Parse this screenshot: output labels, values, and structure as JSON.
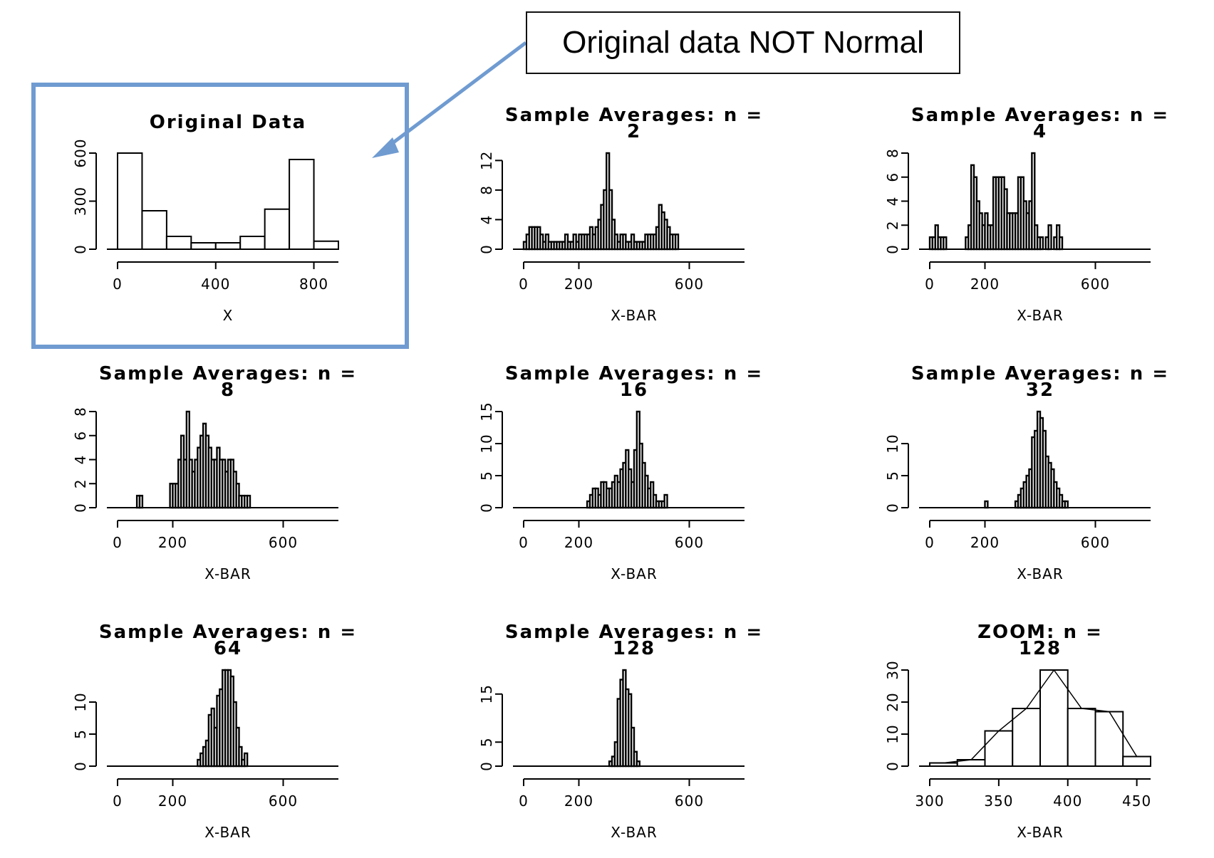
{
  "callout": {
    "text": "Original data NOT Normal",
    "box_color": "#111111",
    "arrow_color": "#6f9bd1"
  },
  "highlight_color": "#6f9bd1",
  "chart_data": [
    {
      "type": "bar",
      "title": "Original Data",
      "title2": "",
      "xlabel": "X",
      "x_ticks": [
        0,
        400,
        800
      ],
      "y_ticks": [
        0,
        300,
        600
      ],
      "xlim": [
        0,
        900
      ],
      "ylim": [
        0,
        600
      ],
      "bin_width": 100,
      "bin_starts": [
        0,
        100,
        200,
        300,
        400,
        500,
        600,
        700,
        800
      ],
      "values": [
        620,
        240,
        80,
        40,
        40,
        80,
        250,
        560,
        50
      ],
      "highlighted": true
    },
    {
      "type": "bar",
      "title": "Sample Averages: n =",
      "title2": "2",
      "xlabel": "X-BAR",
      "x_ticks": [
        0,
        200,
        600
      ],
      "y_ticks": [
        0,
        4,
        8,
        12
      ],
      "xlim": [
        0,
        800
      ],
      "ylim": [
        0,
        13
      ],
      "bin_width": 10,
      "bin_start": 0,
      "values": [
        1,
        2,
        3,
        3,
        3,
        3,
        2,
        1,
        2,
        1,
        1,
        1,
        1,
        1,
        1,
        2,
        1,
        1,
        2,
        1,
        2,
        2,
        2,
        2,
        3,
        2,
        3,
        4,
        6,
        8,
        13,
        8,
        4,
        2,
        1,
        2,
        2,
        1,
        1,
        2,
        1,
        1,
        1,
        1,
        2,
        2,
        2,
        2,
        3,
        6,
        5,
        4,
        3,
        2,
        2,
        2
      ]
    },
    {
      "type": "bar",
      "title": "Sample Averages: n =",
      "title2": "4",
      "xlabel": "X-BAR",
      "x_ticks": [
        0,
        200,
        600
      ],
      "y_ticks": [
        0,
        2,
        4,
        6,
        8
      ],
      "xlim": [
        0,
        800
      ],
      "ylim": [
        0,
        8
      ],
      "bin_width": 10,
      "bin_start": 0,
      "values": [
        1,
        1,
        2,
        1,
        1,
        1,
        0,
        0,
        0,
        0,
        0,
        0,
        0,
        1,
        2,
        7,
        6,
        4,
        3,
        2,
        3,
        2,
        2,
        6,
        6,
        6,
        6,
        5,
        3,
        3,
        3,
        3,
        6,
        6,
        4,
        3,
        4,
        8,
        2,
        1,
        1,
        0,
        1,
        2,
        0,
        1,
        2,
        1
      ]
    },
    {
      "type": "bar",
      "title": "Sample Averages: n =",
      "title2": "8",
      "xlabel": "X-BAR",
      "x_ticks": [
        0,
        200,
        600
      ],
      "y_ticks": [
        0,
        2,
        4,
        6,
        8
      ],
      "xlim": [
        0,
        800
      ],
      "ylim": [
        0,
        8
      ],
      "bin_width": 10,
      "bin_start": 70,
      "values": [
        1,
        1,
        0,
        0,
        0,
        0,
        0,
        0,
        0,
        0,
        0,
        0,
        2,
        2,
        2,
        4,
        6,
        4,
        8,
        4,
        3,
        4,
        5,
        6,
        7,
        6,
        5,
        4,
        4,
        5,
        4,
        4,
        3,
        4,
        4,
        3,
        2,
        1,
        1,
        1,
        1
      ]
    },
    {
      "type": "bar",
      "title": "Sample Averages: n =",
      "title2": "16",
      "xlabel": "X-BAR",
      "x_ticks": [
        0,
        200,
        600
      ],
      "y_ticks": [
        0,
        5,
        10,
        15
      ],
      "xlim": [
        0,
        800
      ],
      "ylim": [
        0,
        15
      ],
      "bin_width": 10,
      "bin_start": 230,
      "values": [
        1,
        2,
        3,
        3,
        2,
        4,
        4,
        3,
        3,
        4,
        5,
        4,
        6,
        7,
        9,
        6,
        4,
        9,
        15,
        10,
        7,
        5,
        3,
        4,
        2,
        1,
        1,
        1,
        2
      ]
    },
    {
      "type": "bar",
      "title": "Sample Averages: n =",
      "title2": "32",
      "xlabel": "X-BAR",
      "x_ticks": [
        0,
        200,
        600
      ],
      "y_ticks": [
        0,
        5,
        10
      ],
      "xlim": [
        0,
        800
      ],
      "ylim": [
        0,
        15
      ],
      "bin_width": 10,
      "bin_start": 200,
      "values": [
        1,
        0,
        0,
        0,
        0,
        0,
        0,
        0,
        0,
        0,
        0,
        1,
        2,
        3,
        4,
        5,
        6,
        11,
        12,
        15,
        14,
        12,
        8,
        7,
        6,
        4,
        3,
        2,
        1,
        1
      ]
    },
    {
      "type": "bar",
      "title": "Sample Averages: n =",
      "title2": "64",
      "xlabel": "X-BAR",
      "x_ticks": [
        0,
        200,
        600
      ],
      "y_ticks": [
        0,
        5,
        10
      ],
      "xlim": [
        0,
        800
      ],
      "ylim": [
        0,
        15
      ],
      "bin_width": 10,
      "bin_start": 290,
      "values": [
        1,
        2,
        3,
        4,
        8,
        9,
        6,
        11,
        12,
        15,
        16,
        16,
        14,
        10,
        6,
        3,
        1,
        2
      ]
    },
    {
      "type": "bar",
      "title": "Sample Averages: n =",
      "title2": "128",
      "xlabel": "X-BAR",
      "x_ticks": [
        0,
        200,
        600
      ],
      "y_ticks": [
        0,
        5,
        15
      ],
      "xlim": [
        0,
        800
      ],
      "ylim": [
        0,
        20
      ],
      "bin_width": 10,
      "bin_start": 310,
      "values": [
        1,
        2,
        5,
        14,
        18,
        20,
        16,
        15,
        8,
        3,
        1
      ]
    },
    {
      "type": "bar",
      "title": "ZOOM: n =",
      "title2": "128",
      "xlabel": "X-BAR",
      "x_ticks": [
        300,
        350,
        400,
        450
      ],
      "y_ticks": [
        0,
        10,
        20,
        30
      ],
      "xlim": [
        300,
        460
      ],
      "ylim": [
        0,
        30
      ],
      "bin_width": 20,
      "bin_start": 300,
      "values": [
        1,
        2,
        11,
        18,
        30,
        18,
        17,
        3
      ],
      "curve_x": [
        310,
        330,
        350,
        370,
        390,
        410,
        430,
        450
      ],
      "curve_y": [
        1,
        2,
        11,
        18,
        30,
        18,
        17,
        3
      ]
    }
  ]
}
